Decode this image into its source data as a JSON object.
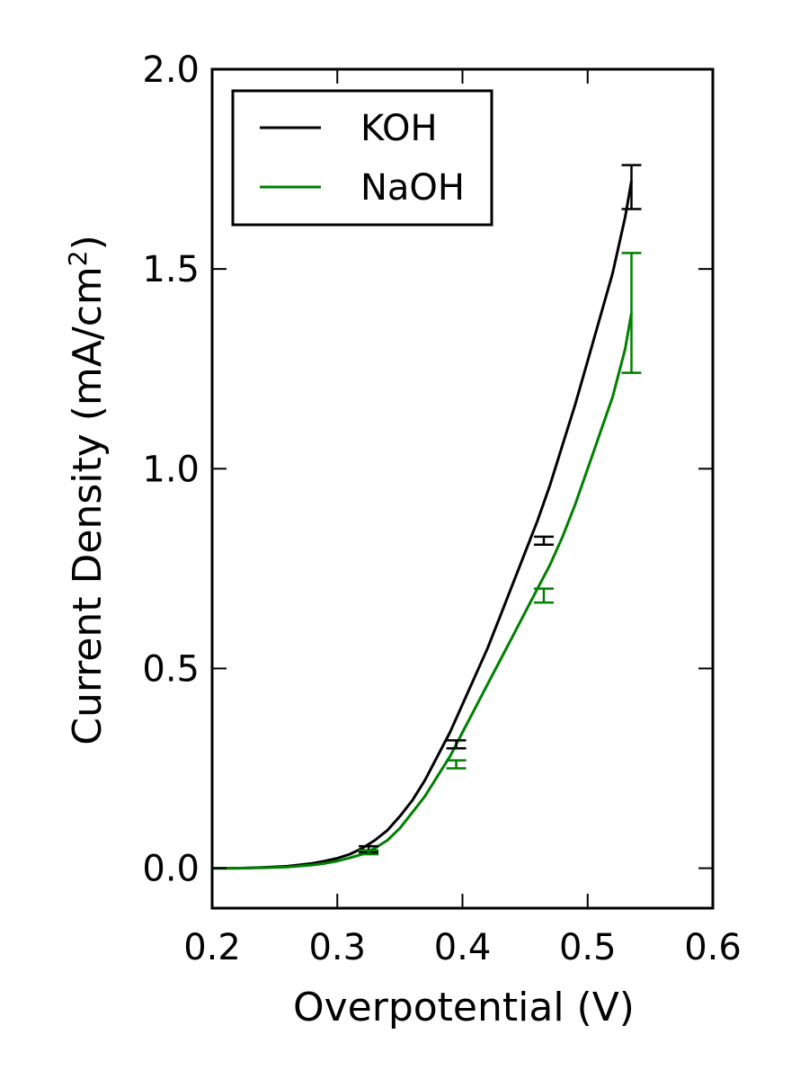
{
  "chart_data": {
    "type": "line",
    "xlabel": "Overpotential (V)",
    "ylabel_main": "Current Density (mA/cm",
    "ylabel_sup": "2",
    "ylabel_close": ")",
    "xlim": [
      0.2,
      0.6
    ],
    "ylim": [
      -0.1,
      2.0
    ],
    "xticks": [
      0.2,
      0.3,
      0.4,
      0.5,
      0.6
    ],
    "xtick_labels": [
      "0.2",
      "0.3",
      "0.4",
      "0.5",
      "0.6"
    ],
    "yticks": [
      0.0,
      0.5,
      1.0,
      1.5,
      2.0
    ],
    "ytick_labels": [
      "0.0",
      "0.5",
      "1.0",
      "1.5",
      "2.0"
    ],
    "grid": false,
    "legend_position": "top-left",
    "series": [
      {
        "name": "KOH",
        "color": "#000000",
        "x": [
          0.2,
          0.22,
          0.24,
          0.26,
          0.28,
          0.29,
          0.3,
          0.31,
          0.32,
          0.33,
          0.34,
          0.35,
          0.36,
          0.37,
          0.38,
          0.39,
          0.4,
          0.41,
          0.42,
          0.43,
          0.44,
          0.45,
          0.46,
          0.47,
          0.48,
          0.49,
          0.5,
          0.51,
          0.52,
          0.53,
          0.535
        ],
        "y": [
          0.0,
          0.0,
          0.002,
          0.005,
          0.012,
          0.018,
          0.025,
          0.035,
          0.05,
          0.07,
          0.095,
          0.13,
          0.17,
          0.22,
          0.28,
          0.34,
          0.41,
          0.48,
          0.55,
          0.63,
          0.71,
          0.79,
          0.87,
          0.96,
          1.06,
          1.16,
          1.27,
          1.38,
          1.49,
          1.63,
          1.72
        ]
      },
      {
        "name": "NaOH",
        "color": "#008000",
        "x": [
          0.2,
          0.22,
          0.24,
          0.26,
          0.28,
          0.29,
          0.3,
          0.31,
          0.32,
          0.33,
          0.34,
          0.35,
          0.36,
          0.37,
          0.38,
          0.39,
          0.4,
          0.41,
          0.42,
          0.43,
          0.44,
          0.45,
          0.46,
          0.47,
          0.48,
          0.49,
          0.5,
          0.51,
          0.52,
          0.53,
          0.535
        ],
        "y": [
          0.0,
          0.0,
          0.001,
          0.003,
          0.008,
          0.012,
          0.018,
          0.026,
          0.035,
          0.05,
          0.07,
          0.1,
          0.14,
          0.18,
          0.23,
          0.28,
          0.34,
          0.4,
          0.46,
          0.52,
          0.58,
          0.64,
          0.7,
          0.76,
          0.83,
          0.91,
          1.0,
          1.09,
          1.18,
          1.3,
          1.39
        ]
      }
    ],
    "error_bars": [
      {
        "series": "KOH",
        "color": "#000000",
        "x": 0.325,
        "low": 0.04,
        "high": 0.055
      },
      {
        "series": "KOH",
        "color": "#000000",
        "x": 0.395,
        "low": 0.3,
        "high": 0.32
      },
      {
        "series": "KOH",
        "color": "#000000",
        "x": 0.465,
        "low": 0.81,
        "high": 0.83
      },
      {
        "series": "KOH",
        "color": "#000000",
        "x": 0.535,
        "low": 1.65,
        "high": 1.76
      },
      {
        "series": "NaOH",
        "color": "#008000",
        "x": 0.325,
        "low": 0.035,
        "high": 0.045
      },
      {
        "series": "NaOH",
        "color": "#008000",
        "x": 0.395,
        "low": 0.25,
        "high": 0.27
      },
      {
        "series": "NaOH",
        "color": "#008000",
        "x": 0.465,
        "low": 0.665,
        "high": 0.7
      },
      {
        "series": "NaOH",
        "color": "#008000",
        "x": 0.535,
        "low": 1.24,
        "high": 1.54
      }
    ]
  }
}
